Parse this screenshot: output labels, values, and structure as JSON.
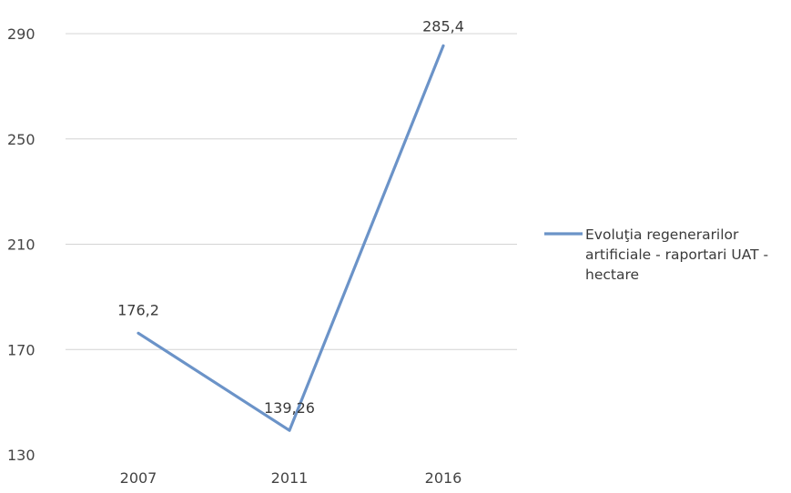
{
  "chart_data": {
    "type": "line",
    "categories": [
      "2007",
      "2011",
      "2016"
    ],
    "series": [
      {
        "name": "Evoluţia regenerarilor artificiale - raportari UAT - hectare",
        "values": [
          176.2,
          139.26,
          285.4
        ],
        "color": "#6b93c8"
      }
    ],
    "data_labels": [
      "176,2",
      "139,26",
      "285,4"
    ],
    "y_ticks": [
      130,
      170,
      210,
      250,
      290
    ],
    "ylim": [
      130,
      290
    ],
    "grid": true,
    "legend_position": "right",
    "legend_lines": [
      "Evoluţia regenerarilor",
      "artificiale - raportari UAT -",
      "hectare"
    ]
  }
}
